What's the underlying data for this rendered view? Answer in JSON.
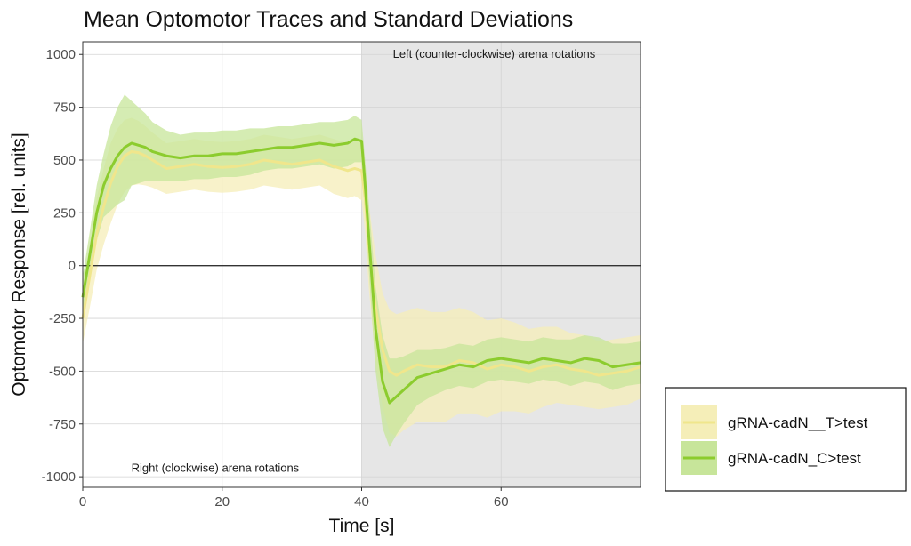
{
  "chart_data": {
    "type": "line",
    "title": "Mean Optomotor Traces and Standard Deviations",
    "xlabel": "Time [s]",
    "ylabel": "Optomotor Response [rel. units]",
    "xlim": [
      0,
      80
    ],
    "ylim": [
      -1050,
      1060
    ],
    "x_ticks": [
      0,
      20,
      40,
      60
    ],
    "y_ticks": [
      -1000,
      -750,
      -500,
      -250,
      0,
      250,
      500,
      750,
      1000
    ],
    "grid": true,
    "legend_position": "right",
    "shaded_region": {
      "x_start": 40,
      "x_end": 80,
      "color": "#e6e6e6"
    },
    "annotations": [
      {
        "text": "Left (counter-clockwise) arena rotations",
        "x": 59,
        "y": 1000
      },
      {
        "text": "Right (clockwise) arena rotations",
        "x": 19,
        "y": -960
      }
    ],
    "hline": 0,
    "x": [
      0,
      1,
      2,
      3,
      4,
      5,
      6,
      7,
      8,
      9,
      10,
      12,
      14,
      16,
      18,
      20,
      22,
      24,
      26,
      28,
      30,
      32,
      34,
      36,
      38,
      39,
      40,
      40.5,
      41,
      42,
      43,
      44,
      45,
      46,
      48,
      50,
      52,
      54,
      56,
      58,
      60,
      62,
      64,
      66,
      68,
      70,
      72,
      74,
      76,
      78,
      80
    ],
    "series": [
      {
        "name": "gRNA-cadN__T>test",
        "color": "#f0e68c",
        "band_color": "#f5eeb8",
        "mean": [
          -250,
          -50,
          150,
          280,
          390,
          470,
          520,
          540,
          535,
          520,
          500,
          460,
          470,
          480,
          470,
          465,
          470,
          480,
          500,
          490,
          480,
          490,
          500,
          470,
          450,
          460,
          450,
          320,
          100,
          -200,
          -400,
          -500,
          -520,
          -500,
          -470,
          -480,
          -480,
          -450,
          -460,
          -490,
          -470,
          -480,
          -500,
          -480,
          -470,
          -490,
          -500,
          -520,
          -510,
          -500,
          -480
        ],
        "sd": [
          120,
          150,
          170,
          180,
          190,
          180,
          170,
          160,
          150,
          140,
          130,
          120,
          120,
          120,
          120,
          120,
          120,
          120,
          120,
          120,
          120,
          120,
          120,
          130,
          130,
          130,
          140,
          160,
          200,
          250,
          270,
          290,
          290,
          280,
          270,
          260,
          260,
          250,
          240,
          230,
          220,
          210,
          200,
          190,
          180,
          170,
          170,
          160,
          160,
          160,
          150
        ]
      },
      {
        "name": "gRNA-cadN_C>test",
        "color": "#8ccc2e",
        "band_color": "#c7e59a",
        "mean": [
          -150,
          50,
          250,
          380,
          460,
          520,
          560,
          580,
          570,
          560,
          540,
          520,
          510,
          520,
          520,
          530,
          530,
          540,
          550,
          560,
          560,
          570,
          580,
          570,
          580,
          600,
          590,
          380,
          150,
          -300,
          -550,
          -650,
          -620,
          -590,
          -530,
          -510,
          -490,
          -470,
          -480,
          -450,
          -440,
          -450,
          -460,
          -440,
          -450,
          -460,
          -440,
          -450,
          -480,
          -470,
          -460
        ],
        "sd": [
          100,
          110,
          130,
          150,
          200,
          230,
          250,
          200,
          180,
          160,
          140,
          120,
          110,
          110,
          110,
          110,
          110,
          110,
          100,
          100,
          100,
          100,
          100,
          110,
          110,
          110,
          100,
          120,
          160,
          200,
          220,
          210,
          180,
          160,
          130,
          110,
          100,
          100,
          100,
          100,
          100,
          100,
          100,
          100,
          100,
          110,
          110,
          110,
          110,
          100,
          100
        ]
      }
    ]
  }
}
